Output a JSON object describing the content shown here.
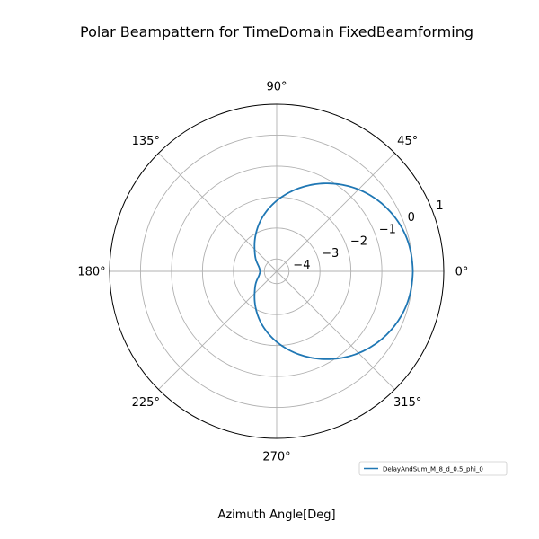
{
  "chart_data": {
    "type": "line",
    "projection": "polar",
    "title": "Polar Beampattern for TimeDomain FixedBeamforming",
    "xlabel": "Azimuth Angle[Deg]",
    "ylabel": "",
    "angle_unit": "degrees",
    "angle_ticks": [
      0,
      45,
      90,
      135,
      180,
      225,
      270,
      315
    ],
    "angle_tick_labels": [
      "0°",
      "45°",
      "90°",
      "135°",
      "180°",
      "225°",
      "270°",
      "315°"
    ],
    "rlim": [
      -4.4,
      1
    ],
    "r_ticks": [
      -4,
      -3,
      -2,
      -1,
      0,
      1
    ],
    "r_tick_labels": [
      "−4",
      "−3",
      "−2",
      "−1",
      "0",
      "1"
    ],
    "grid": true,
    "legend_position": "bottom-right",
    "colors": {
      "series": "#1f77b4",
      "grid": "#b0b0b0",
      "frame": "#000000"
    },
    "series": [
      {
        "name": "DelayAndSum_M_8_d_0.5_phi_0",
        "theta_deg": [
          0,
          15,
          30,
          45,
          60,
          75,
          90,
          105,
          120,
          135,
          150,
          165,
          180,
          195,
          210,
          225,
          240,
          255,
          270,
          285,
          300,
          315,
          330,
          345,
          360
        ],
        "r": [
          0.0,
          -0.07,
          -0.3,
          -0.66,
          -1.12,
          -1.62,
          -2.12,
          -2.6,
          -3.04,
          -3.39,
          -3.62,
          -3.8,
          -3.86,
          -3.8,
          -3.62,
          -3.39,
          -3.04,
          -2.6,
          -2.12,
          -1.62,
          -1.12,
          -0.66,
          -0.3,
          -0.07,
          0.0
        ]
      }
    ]
  }
}
